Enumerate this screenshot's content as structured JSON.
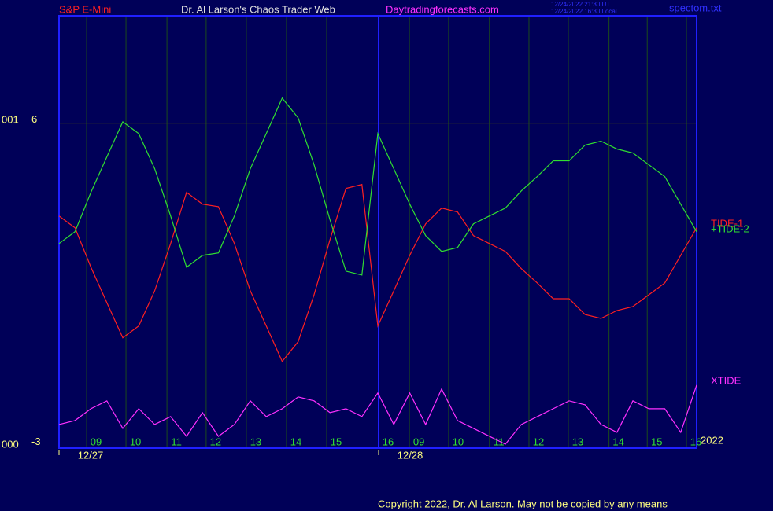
{
  "chart_data": {
    "type": "line",
    "title": "Dr. Al Larson's Chaos Trader Web",
    "symbol": "S&P E-Mini",
    "site": "Daytradingforecasts.com",
    "timestamps": [
      "12/24/2022 21:30 UT",
      "12/24/2022 16:30 Local"
    ],
    "file": "spectom.txt",
    "left_labels": [
      "001",
      "000"
    ],
    "year": "2022",
    "copyright": "Copyright 2022, Dr. Al Larson. May not be copied by any means",
    "x": [
      0,
      1,
      2,
      3,
      4,
      5,
      6,
      7,
      8,
      9,
      10,
      11,
      12,
      13,
      14,
      15,
      16,
      17,
      18,
      19,
      20,
      21,
      22,
      23,
      24,
      25,
      26,
      27,
      28,
      29,
      30,
      31,
      32,
      33,
      34,
      35,
      36,
      37,
      38,
      39,
      40
    ],
    "xlim": [
      0,
      40
    ],
    "ylim": [
      -3.07,
      9.0
    ],
    "yticks": [
      6,
      -3
    ],
    "xticks": [
      {
        "value": 1.73,
        "label": "09"
      },
      {
        "value": 4.2,
        "label": "10"
      },
      {
        "value": 6.77,
        "label": "11"
      },
      {
        "value": 9.23,
        "label": "12"
      },
      {
        "value": 11.75,
        "label": "13"
      },
      {
        "value": 14.27,
        "label": "14"
      },
      {
        "value": 16.79,
        "label": "15"
      },
      {
        "value": 20.05,
        "label": "16"
      },
      {
        "value": 21.98,
        "label": "09"
      },
      {
        "value": 24.44,
        "label": "10"
      },
      {
        "value": 27.0,
        "label": "11"
      },
      {
        "value": 29.48,
        "label": "12"
      },
      {
        "value": 31.95,
        "label": "13"
      },
      {
        "value": 34.5,
        "label": "14"
      },
      {
        "value": 36.9,
        "label": "15"
      },
      {
        "value": 39.36,
        "label": "16"
      }
    ],
    "xdays": [
      {
        "value": 0,
        "label": "12/27"
      },
      {
        "value": 20.05,
        "label": "12/28"
      }
    ],
    "series": [
      {
        "name": "TIDE-1",
        "color": "#ff2020",
        "values": [
          3.41,
          3.08,
          1.98,
          0.99,
          0.01,
          0.34,
          1.32,
          2.64,
          4.07,
          3.74,
          3.67,
          2.64,
          1.32,
          0.34,
          -0.65,
          -0.1,
          1.21,
          2.75,
          4.18,
          4.29,
          0.34,
          1.32,
          2.31,
          3.19,
          3.63,
          3.52,
          2.86,
          2.64,
          2.42,
          1.94,
          1.54,
          1.1,
          1.1,
          0.66,
          0.55,
          0.77,
          0.88,
          1.21,
          1.54,
          2.31,
          3.08
        ]
      },
      {
        "name": "+TIDE-2",
        "color": "#30e030",
        "values": [
          2.64,
          2.97,
          4.07,
          5.06,
          6.04,
          5.71,
          4.73,
          3.41,
          1.98,
          2.31,
          2.38,
          3.41,
          4.73,
          5.71,
          6.7,
          6.15,
          4.84,
          3.3,
          1.87,
          1.76,
          5.71,
          4.73,
          3.74,
          2.86,
          2.42,
          2.53,
          3.19,
          3.41,
          3.63,
          4.11,
          4.51,
          4.95,
          4.95,
          5.39,
          5.5,
          5.28,
          5.17,
          4.84,
          4.51,
          3.74,
          2.97
        ]
      },
      {
        "name": "XTIDE",
        "color": "#ff30ff",
        "values": [
          -2.41,
          -2.3,
          -1.97,
          -1.75,
          -2.52,
          -1.97,
          -2.41,
          -2.19,
          -2.74,
          -2.08,
          -2.74,
          -2.41,
          -1.75,
          -2.19,
          -1.97,
          -1.64,
          -1.75,
          -2.08,
          -1.97,
          -2.19,
          -1.53,
          -2.41,
          -1.53,
          -2.41,
          -1.42,
          -2.3,
          -2.52,
          -2.74,
          -2.96,
          -2.41,
          -2.19,
          -1.97,
          -1.75,
          -1.86,
          -2.41,
          -2.63,
          -1.75,
          -1.97,
          -1.97,
          -2.63,
          -1.31
        ]
      }
    ],
    "grid": true
  }
}
